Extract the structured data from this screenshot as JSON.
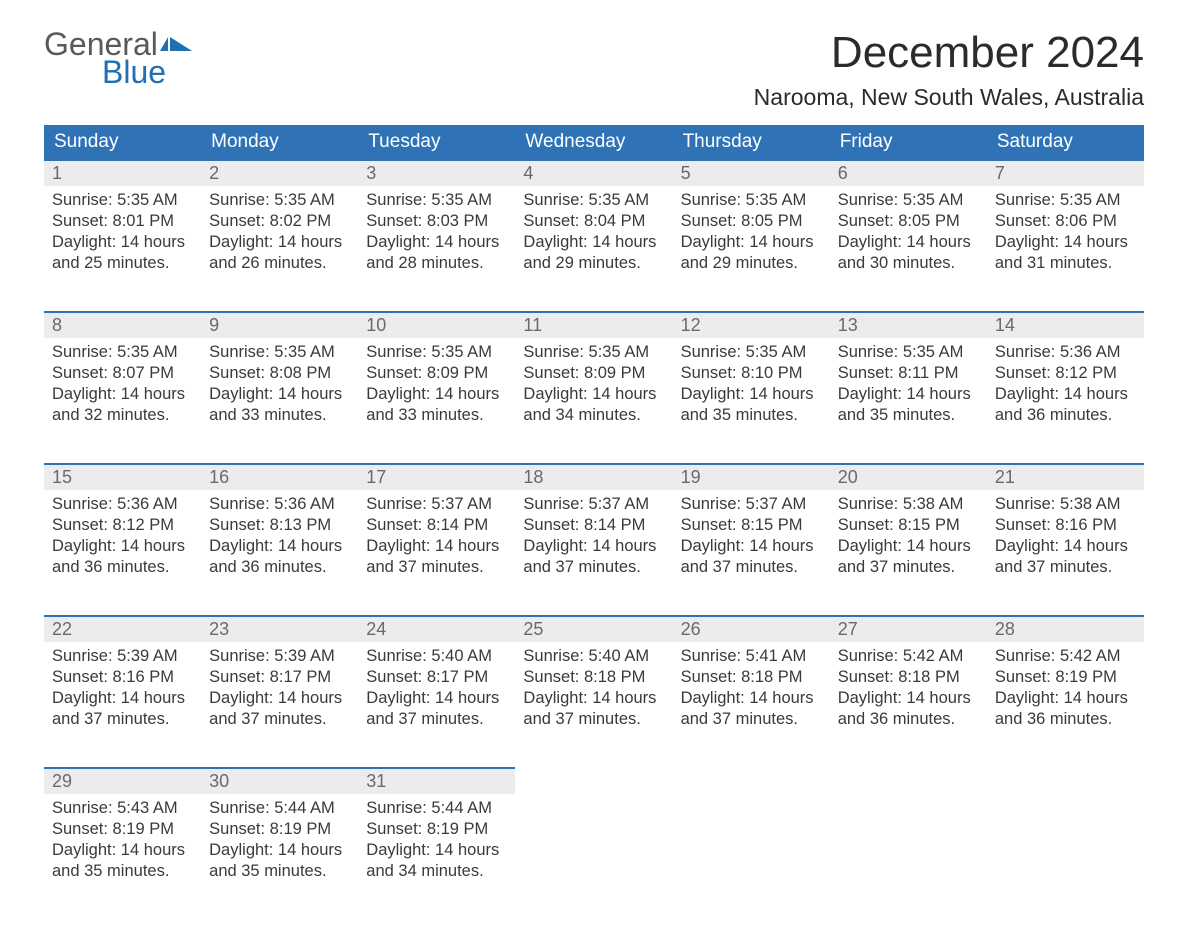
{
  "logo": {
    "word1": "General",
    "word2": "Blue"
  },
  "header": {
    "month_title": "December 2024",
    "location": "Narooma, New South Wales, Australia"
  },
  "colors": {
    "header_bg": "#2f73b6",
    "header_text": "#ffffff",
    "daynum_bg": "#ececec",
    "daynum_border": "#2f73b6",
    "body_text": "#3a3a3a",
    "logo_gray": "#5a5a5a",
    "logo_blue": "#1f6fb2"
  },
  "weekdays": [
    "Sunday",
    "Monday",
    "Tuesday",
    "Wednesday",
    "Thursday",
    "Friday",
    "Saturday"
  ],
  "weeks": [
    [
      {
        "day": "1",
        "sunrise": "Sunrise: 5:35 AM",
        "sunset": "Sunset: 8:01 PM",
        "dl1": "Daylight: 14 hours",
        "dl2": "and 25 minutes."
      },
      {
        "day": "2",
        "sunrise": "Sunrise: 5:35 AM",
        "sunset": "Sunset: 8:02 PM",
        "dl1": "Daylight: 14 hours",
        "dl2": "and 26 minutes."
      },
      {
        "day": "3",
        "sunrise": "Sunrise: 5:35 AM",
        "sunset": "Sunset: 8:03 PM",
        "dl1": "Daylight: 14 hours",
        "dl2": "and 28 minutes."
      },
      {
        "day": "4",
        "sunrise": "Sunrise: 5:35 AM",
        "sunset": "Sunset: 8:04 PM",
        "dl1": "Daylight: 14 hours",
        "dl2": "and 29 minutes."
      },
      {
        "day": "5",
        "sunrise": "Sunrise: 5:35 AM",
        "sunset": "Sunset: 8:05 PM",
        "dl1": "Daylight: 14 hours",
        "dl2": "and 29 minutes."
      },
      {
        "day": "6",
        "sunrise": "Sunrise: 5:35 AM",
        "sunset": "Sunset: 8:05 PM",
        "dl1": "Daylight: 14 hours",
        "dl2": "and 30 minutes."
      },
      {
        "day": "7",
        "sunrise": "Sunrise: 5:35 AM",
        "sunset": "Sunset: 8:06 PM",
        "dl1": "Daylight: 14 hours",
        "dl2": "and 31 minutes."
      }
    ],
    [
      {
        "day": "8",
        "sunrise": "Sunrise: 5:35 AM",
        "sunset": "Sunset: 8:07 PM",
        "dl1": "Daylight: 14 hours",
        "dl2": "and 32 minutes."
      },
      {
        "day": "9",
        "sunrise": "Sunrise: 5:35 AM",
        "sunset": "Sunset: 8:08 PM",
        "dl1": "Daylight: 14 hours",
        "dl2": "and 33 minutes."
      },
      {
        "day": "10",
        "sunrise": "Sunrise: 5:35 AM",
        "sunset": "Sunset: 8:09 PM",
        "dl1": "Daylight: 14 hours",
        "dl2": "and 33 minutes."
      },
      {
        "day": "11",
        "sunrise": "Sunrise: 5:35 AM",
        "sunset": "Sunset: 8:09 PM",
        "dl1": "Daylight: 14 hours",
        "dl2": "and 34 minutes."
      },
      {
        "day": "12",
        "sunrise": "Sunrise: 5:35 AM",
        "sunset": "Sunset: 8:10 PM",
        "dl1": "Daylight: 14 hours",
        "dl2": "and 35 minutes."
      },
      {
        "day": "13",
        "sunrise": "Sunrise: 5:35 AM",
        "sunset": "Sunset: 8:11 PM",
        "dl1": "Daylight: 14 hours",
        "dl2": "and 35 minutes."
      },
      {
        "day": "14",
        "sunrise": "Sunrise: 5:36 AM",
        "sunset": "Sunset: 8:12 PM",
        "dl1": "Daylight: 14 hours",
        "dl2": "and 36 minutes."
      }
    ],
    [
      {
        "day": "15",
        "sunrise": "Sunrise: 5:36 AM",
        "sunset": "Sunset: 8:12 PM",
        "dl1": "Daylight: 14 hours",
        "dl2": "and 36 minutes."
      },
      {
        "day": "16",
        "sunrise": "Sunrise: 5:36 AM",
        "sunset": "Sunset: 8:13 PM",
        "dl1": "Daylight: 14 hours",
        "dl2": "and 36 minutes."
      },
      {
        "day": "17",
        "sunrise": "Sunrise: 5:37 AM",
        "sunset": "Sunset: 8:14 PM",
        "dl1": "Daylight: 14 hours",
        "dl2": "and 37 minutes."
      },
      {
        "day": "18",
        "sunrise": "Sunrise: 5:37 AM",
        "sunset": "Sunset: 8:14 PM",
        "dl1": "Daylight: 14 hours",
        "dl2": "and 37 minutes."
      },
      {
        "day": "19",
        "sunrise": "Sunrise: 5:37 AM",
        "sunset": "Sunset: 8:15 PM",
        "dl1": "Daylight: 14 hours",
        "dl2": "and 37 minutes."
      },
      {
        "day": "20",
        "sunrise": "Sunrise: 5:38 AM",
        "sunset": "Sunset: 8:15 PM",
        "dl1": "Daylight: 14 hours",
        "dl2": "and 37 minutes."
      },
      {
        "day": "21",
        "sunrise": "Sunrise: 5:38 AM",
        "sunset": "Sunset: 8:16 PM",
        "dl1": "Daylight: 14 hours",
        "dl2": "and 37 minutes."
      }
    ],
    [
      {
        "day": "22",
        "sunrise": "Sunrise: 5:39 AM",
        "sunset": "Sunset: 8:16 PM",
        "dl1": "Daylight: 14 hours",
        "dl2": "and 37 minutes."
      },
      {
        "day": "23",
        "sunrise": "Sunrise: 5:39 AM",
        "sunset": "Sunset: 8:17 PM",
        "dl1": "Daylight: 14 hours",
        "dl2": "and 37 minutes."
      },
      {
        "day": "24",
        "sunrise": "Sunrise: 5:40 AM",
        "sunset": "Sunset: 8:17 PM",
        "dl1": "Daylight: 14 hours",
        "dl2": "and 37 minutes."
      },
      {
        "day": "25",
        "sunrise": "Sunrise: 5:40 AM",
        "sunset": "Sunset: 8:18 PM",
        "dl1": "Daylight: 14 hours",
        "dl2": "and 37 minutes."
      },
      {
        "day": "26",
        "sunrise": "Sunrise: 5:41 AM",
        "sunset": "Sunset: 8:18 PM",
        "dl1": "Daylight: 14 hours",
        "dl2": "and 37 minutes."
      },
      {
        "day": "27",
        "sunrise": "Sunrise: 5:42 AM",
        "sunset": "Sunset: 8:18 PM",
        "dl1": "Daylight: 14 hours",
        "dl2": "and 36 minutes."
      },
      {
        "day": "28",
        "sunrise": "Sunrise: 5:42 AM",
        "sunset": "Sunset: 8:19 PM",
        "dl1": "Daylight: 14 hours",
        "dl2": "and 36 minutes."
      }
    ],
    [
      {
        "day": "29",
        "sunrise": "Sunrise: 5:43 AM",
        "sunset": "Sunset: 8:19 PM",
        "dl1": "Daylight: 14 hours",
        "dl2": "and 35 minutes."
      },
      {
        "day": "30",
        "sunrise": "Sunrise: 5:44 AM",
        "sunset": "Sunset: 8:19 PM",
        "dl1": "Daylight: 14 hours",
        "dl2": "and 35 minutes."
      },
      {
        "day": "31",
        "sunrise": "Sunrise: 5:44 AM",
        "sunset": "Sunset: 8:19 PM",
        "dl1": "Daylight: 14 hours",
        "dl2": "and 34 minutes."
      },
      null,
      null,
      null,
      null
    ]
  ]
}
